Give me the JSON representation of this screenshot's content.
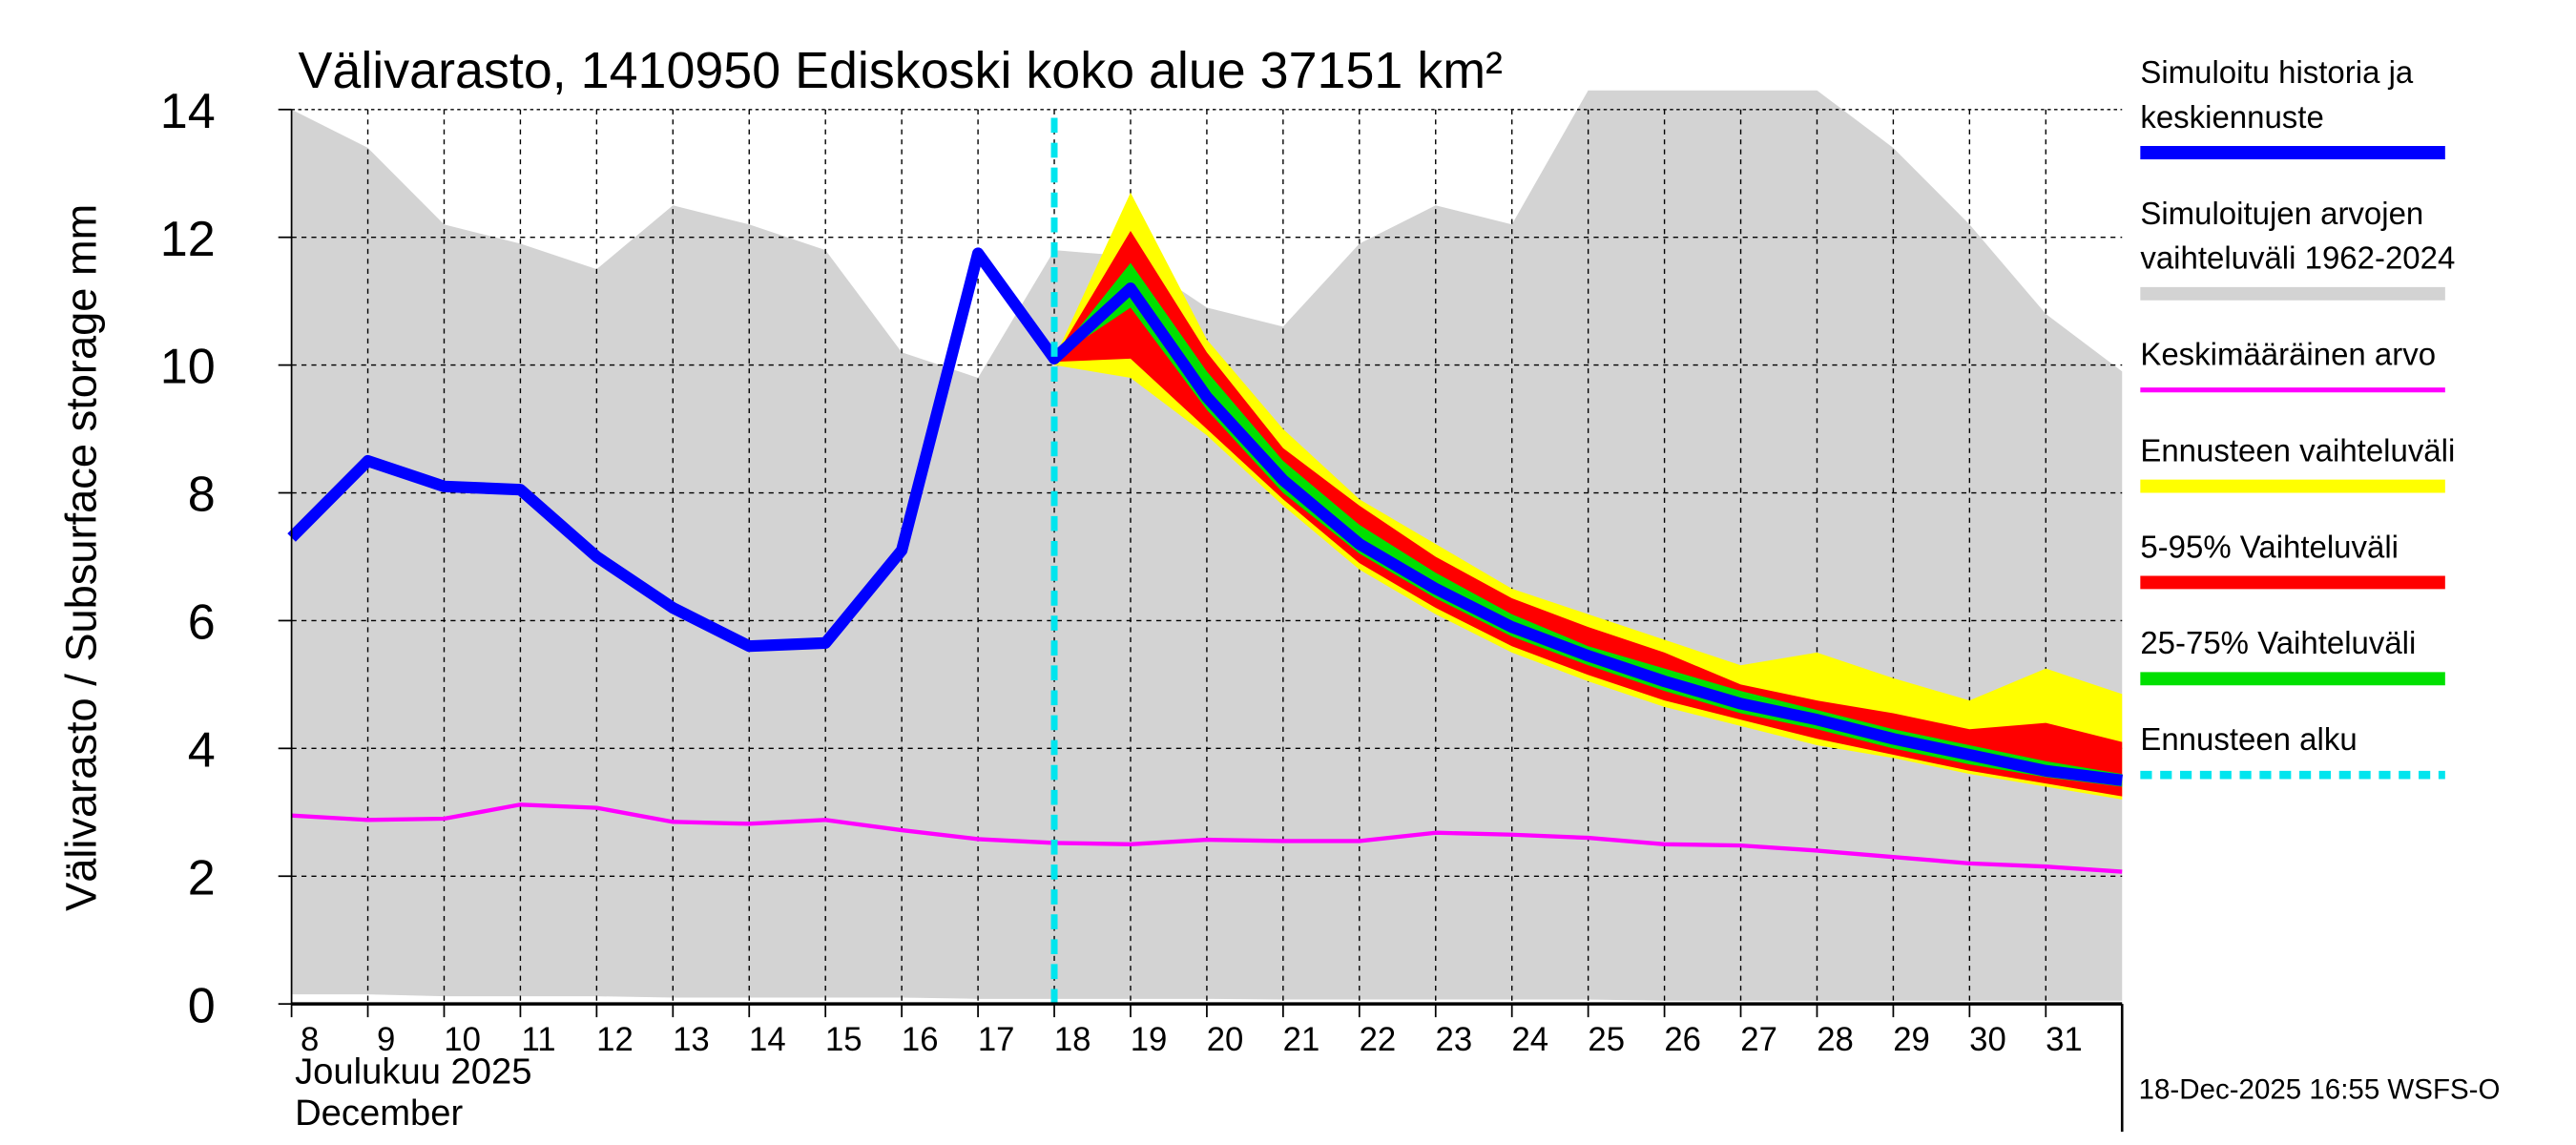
{
  "chart_data": {
    "type": "area",
    "title": "Välivarasto, 1410950 Ediskoski koko alue 37151 km²",
    "ylabel": "Välivarasto / Subsurface storage  mm",
    "xlabel_line1": "Joulukuu  2025",
    "xlabel_line2": "December",
    "ylim": [
      0,
      14
    ],
    "yticks": [
      0,
      2,
      4,
      6,
      8,
      10,
      12,
      14
    ],
    "xlim": [
      8,
      32
    ],
    "xtick_labels": [
      "8",
      "9",
      "10",
      "11",
      "12",
      "13",
      "14",
      "15",
      "16",
      "17",
      "18",
      "19",
      "20",
      "21",
      "22",
      "23",
      "24",
      "25",
      "26",
      "27",
      "28",
      "29",
      "30",
      "31"
    ],
    "grid": true,
    "forecast_start_day": 18,
    "days": [
      8,
      9,
      10,
      11,
      12,
      13,
      14,
      15,
      16,
      17,
      18,
      19,
      20,
      21,
      22,
      23,
      24,
      25,
      26,
      27,
      28,
      29,
      30,
      31,
      32
    ],
    "sim_range_upper": [
      14.0,
      13.4,
      12.2,
      11.9,
      11.5,
      12.5,
      12.2,
      11.8,
      10.2,
      9.8,
      11.8,
      11.7,
      10.9,
      10.6,
      11.9,
      12.5,
      12.2,
      14.5,
      14.5,
      14.5,
      14.5,
      13.4,
      12.2,
      10.8,
      9.9
    ],
    "sim_range_lower": [
      0.15,
      0.15,
      0.12,
      0.12,
      0.12,
      0.1,
      0.1,
      0.1,
      0.1,
      0.08,
      0.08,
      0.08,
      0.08,
      0.07,
      0.07,
      0.07,
      0.07,
      0.07,
      0.05,
      0.05,
      0.05,
      0.05,
      0.05,
      0.05,
      0.05
    ],
    "mean": [
      2.95,
      2.88,
      2.9,
      3.12,
      3.07,
      2.85,
      2.82,
      2.88,
      2.72,
      2.58,
      2.52,
      2.5,
      2.57,
      2.55,
      2.55,
      2.68,
      2.65,
      2.6,
      2.5,
      2.48,
      2.4,
      2.3,
      2.2,
      2.15,
      2.07
    ],
    "forecast_days": [
      18,
      19,
      20,
      21,
      22,
      23,
      24,
      25,
      26,
      27,
      28,
      29,
      30,
      31,
      32
    ],
    "ens_upper": [
      10.1,
      12.7,
      10.4,
      9.0,
      7.9,
      7.2,
      6.5,
      6.1,
      5.7,
      5.3,
      5.5,
      5.1,
      4.75,
      5.25,
      4.85
    ],
    "ens_lower": [
      10.0,
      9.8,
      8.9,
      7.8,
      6.8,
      6.1,
      5.5,
      5.05,
      4.65,
      4.35,
      4.05,
      3.85,
      3.6,
      3.4,
      3.2
    ],
    "p5_95_upper": [
      10.1,
      12.1,
      10.2,
      8.7,
      7.8,
      7.0,
      6.35,
      5.9,
      5.5,
      5.0,
      4.75,
      4.55,
      4.3,
      4.4,
      4.1
    ],
    "p5_95_lower": [
      10.05,
      10.1,
      9.0,
      7.9,
      6.9,
      6.2,
      5.6,
      5.15,
      4.75,
      4.45,
      4.15,
      3.9,
      3.65,
      3.45,
      3.25
    ],
    "p25_75_upper": [
      10.1,
      11.6,
      9.9,
      8.5,
      7.5,
      6.75,
      6.1,
      5.6,
      5.25,
      4.9,
      4.6,
      4.3,
      4.05,
      3.8,
      3.6
    ],
    "p25_75_lower": [
      10.1,
      10.9,
      9.3,
      8.0,
      7.05,
      6.35,
      5.75,
      5.3,
      4.9,
      4.55,
      4.3,
      4.0,
      3.75,
      3.55,
      3.4
    ],
    "sim_history_forecast": [
      7.3,
      8.5,
      8.1,
      8.05,
      7.0,
      6.2,
      5.6,
      5.65,
      7.1,
      11.75,
      10.1,
      11.2,
      9.5,
      8.2,
      7.2,
      6.5,
      5.9,
      5.45,
      5.05,
      4.7,
      4.45,
      4.15,
      3.9,
      3.65,
      3.5
    ],
    "legend_placement": "right",
    "legend": [
      {
        "line1": "Simuloitu historia ja",
        "line2": "keskiennuste",
        "color": "#0000ff",
        "style": "thick"
      },
      {
        "line1": "Simuloitujen arvojen",
        "line2": "vaihteluväli 1962-2024",
        "color": "#d3d3d3",
        "style": "thick"
      },
      {
        "line1": "Keskimääräinen arvo",
        "line2": "",
        "color": "#ff00ff",
        "style": "thin"
      },
      {
        "line1": "Ennusteen vaihteluväli",
        "line2": "",
        "color": "#ffff00",
        "style": "thick"
      },
      {
        "line1": "5-95% Vaihteluväli",
        "line2": "",
        "color": "#ff0000",
        "style": "thick"
      },
      {
        "line1": "25-75% Vaihteluväli",
        "line2": "",
        "color": "#00e000",
        "style": "thick"
      },
      {
        "line1": "Ennusteen alku",
        "line2": "",
        "color": "#00e5ee",
        "style": "dotted"
      }
    ],
    "footer": "18-Dec-2025 16:55 WSFS-O"
  }
}
